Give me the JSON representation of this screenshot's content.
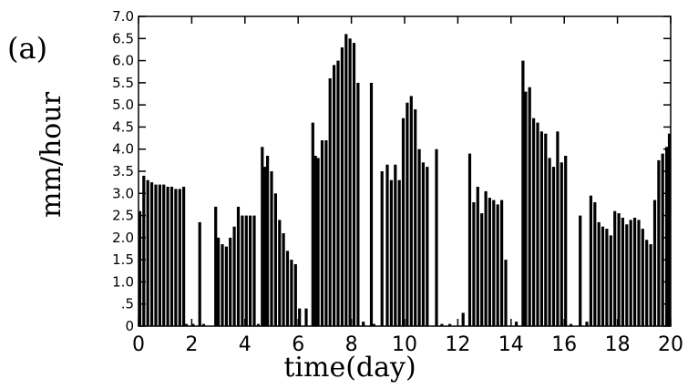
{
  "panel_label": "(a)",
  "chart_data": {
    "type": "bar",
    "xlabel": "time(day)",
    "ylabel": "mm/hour",
    "xlim": [
      0,
      20
    ],
    "ylim": [
      0,
      7
    ],
    "x_ticks": [
      0,
      2,
      4,
      6,
      8,
      10,
      12,
      14,
      16,
      18,
      20
    ],
    "x_tick_labels": [
      "0",
      "2",
      "4",
      "6",
      "8",
      "10",
      "12",
      "14",
      "16",
      "18",
      "20"
    ],
    "y_ticks": [
      0,
      0.5,
      1,
      1.5,
      2,
      2.5,
      3,
      3.5,
      4,
      4.5,
      5,
      5.5,
      6,
      6.5,
      7
    ],
    "y_tick_labels": [
      "0",
      ".5",
      "1.0",
      "1.5",
      "2.0",
      "2.5",
      "3.0",
      "3.5",
      "4.0",
      "4.5",
      "5.0",
      "5.5",
      "6.0",
      "6.5",
      "7.0"
    ],
    "grid": false,
    "series": [
      {
        "color": "#000000",
        "x": [
          0.05,
          0.2,
          0.35,
          0.5,
          0.65,
          0.8,
          0.95,
          1.1,
          1.25,
          1.4,
          1.55,
          1.7,
          1.8,
          2.05,
          2.3,
          2.45,
          2.9,
          3.0,
          3.15,
          3.3,
          3.45,
          3.6,
          3.75,
          3.9,
          4.05,
          4.2,
          4.35,
          4.5,
          4.65,
          4.75,
          4.85,
          5.0,
          5.15,
          5.3,
          5.45,
          5.6,
          5.75,
          5.9,
          6.05,
          6.3,
          6.55,
          6.65,
          6.75,
          6.9,
          7.05,
          7.2,
          7.35,
          7.5,
          7.65,
          7.8,
          7.95,
          8.1,
          8.25,
          8.45,
          8.75,
          8.85,
          9.15,
          9.35,
          9.5,
          9.65,
          9.8,
          9.95,
          10.1,
          10.25,
          10.4,
          10.55,
          10.7,
          10.85,
          11.2,
          11.4,
          11.7,
          12.2,
          12.45,
          12.6,
          12.75,
          12.9,
          13.05,
          13.2,
          13.35,
          13.5,
          13.65,
          13.8,
          14.2,
          14.45,
          14.55,
          14.7,
          14.85,
          15.0,
          15.15,
          15.3,
          15.45,
          15.6,
          15.75,
          15.9,
          16.05,
          16.25,
          16.6,
          16.85,
          17.0,
          17.15,
          17.3,
          17.45,
          17.6,
          17.75,
          17.9,
          18.05,
          18.2,
          18.35,
          18.5,
          18.65,
          18.8,
          18.95,
          19.1,
          19.25,
          19.4,
          19.55,
          19.7,
          19.85,
          19.95
        ],
        "values": [
          2.6,
          3.4,
          3.3,
          3.25,
          3.2,
          3.2,
          3.2,
          3.15,
          3.15,
          3.1,
          3.1,
          3.15,
          0.05,
          0.05,
          2.35,
          0.05,
          2.7,
          2.0,
          1.85,
          1.8,
          2.0,
          2.25,
          2.7,
          2.5,
          2.5,
          2.5,
          2.5,
          0.05,
          4.05,
          3.6,
          3.85,
          3.5,
          3.0,
          2.4,
          2.1,
          1.7,
          1.5,
          1.4,
          0.4,
          0.4,
          4.6,
          3.85,
          3.8,
          4.2,
          4.2,
          5.6,
          5.9,
          6.0,
          6.3,
          6.6,
          6.5,
          6.4,
          5.5,
          0.1,
          5.5,
          0.05,
          3.5,
          3.65,
          3.3,
          3.65,
          3.3,
          4.7,
          5.05,
          5.2,
          4.9,
          4.0,
          3.7,
          3.6,
          4.0,
          0.05,
          0.05,
          0.3,
          3.9,
          2.8,
          3.15,
          2.55,
          3.05,
          2.9,
          2.85,
          2.75,
          2.85,
          1.5,
          0.1,
          6.0,
          5.3,
          5.4,
          4.7,
          4.6,
          4.4,
          4.35,
          3.8,
          3.6,
          4.4,
          3.7,
          3.85,
          0.05,
          2.5,
          0.1,
          2.95,
          2.8,
          2.35,
          2.25,
          2.2,
          2.05,
          2.6,
          2.55,
          2.45,
          2.3,
          2.4,
          2.45,
          2.4,
          2.2,
          1.95,
          1.85,
          2.85,
          3.75,
          3.9,
          4.05,
          4.35
        ]
      }
    ]
  }
}
